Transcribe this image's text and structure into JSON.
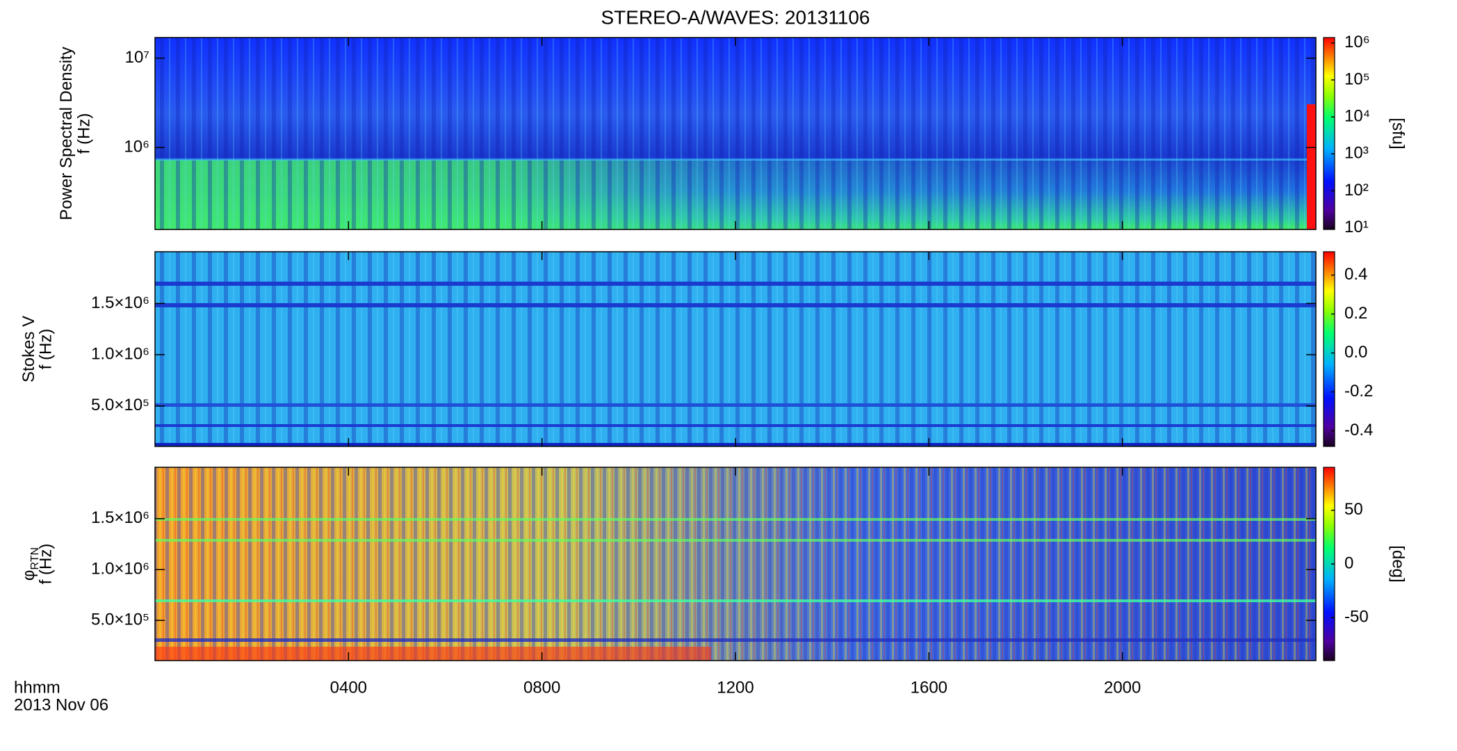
{
  "title": "STEREO-A/WAVES: 20131106",
  "x_axis": {
    "label": "hhmm",
    "date": "2013 Nov 06",
    "xlim": [
      0,
      24
    ],
    "xticks": [
      {
        "value": 4,
        "label": "0400"
      },
      {
        "value": 8,
        "label": "0800"
      },
      {
        "value": 12,
        "label": "1200"
      },
      {
        "value": 16,
        "label": "1600"
      },
      {
        "value": 20,
        "label": "2000"
      }
    ]
  },
  "chart_data": [
    {
      "type": "spectrogram",
      "ylabel": "Power Spectral Density",
      "ylabel2": "f (Hz)",
      "log_y": true,
      "ylim": [
        121000,
        17000000
      ],
      "yticks": [
        {
          "value": 1000000,
          "label": "10⁶"
        },
        {
          "value": 10000000,
          "label": "10⁷"
        }
      ],
      "colorbar": {
        "log": true,
        "clim": [
          9,
          1400000
        ],
        "cticks": [
          {
            "value": 10,
            "label": "10¹"
          },
          {
            "value": 100,
            "label": "10²"
          },
          {
            "value": 1000,
            "label": "10³"
          },
          {
            "value": 10000,
            "label": "10⁴"
          },
          {
            "value": 100000,
            "label": "10⁵"
          },
          {
            "value": 1000000,
            "label": "10⁶"
          }
        ],
        "label": "[sfu]"
      }
    },
    {
      "type": "spectrogram",
      "ylabel": "Stokes V",
      "ylabel2": "f (Hz)",
      "log_y": false,
      "ylim": [
        105000,
        2005000
      ],
      "yticks": [
        {
          "value": 500000,
          "label": "5.0×10⁵"
        },
        {
          "value": 1000000,
          "label": "1.0×10⁶"
        },
        {
          "value": 1500000,
          "label": "1.5×10⁶"
        }
      ],
      "colorbar": {
        "log": false,
        "clim": [
          -0.48,
          0.52
        ],
        "cticks": [
          -0.4,
          -0.2,
          {
            "value": 0,
            "label": "0.0"
          },
          0.2,
          0.4
        ]
      }
    },
    {
      "type": "spectrogram",
      "ylabel": "φ",
      "ylabel_sub": "RTN",
      "ylabel2": "f (Hz)",
      "log_y": false,
      "ylim": [
        105000,
        2005000
      ],
      "yticks": [
        {
          "value": 500000,
          "label": "5.0×10⁵"
        },
        {
          "value": 1000000,
          "label": "1.0×10⁶"
        },
        {
          "value": 1500000,
          "label": "1.5×10⁶"
        }
      ],
      "colorbar": {
        "log": false,
        "clim": [
          -90,
          90
        ],
        "cticks": [
          -50,
          0,
          50
        ],
        "label": "[deg]"
      }
    }
  ]
}
